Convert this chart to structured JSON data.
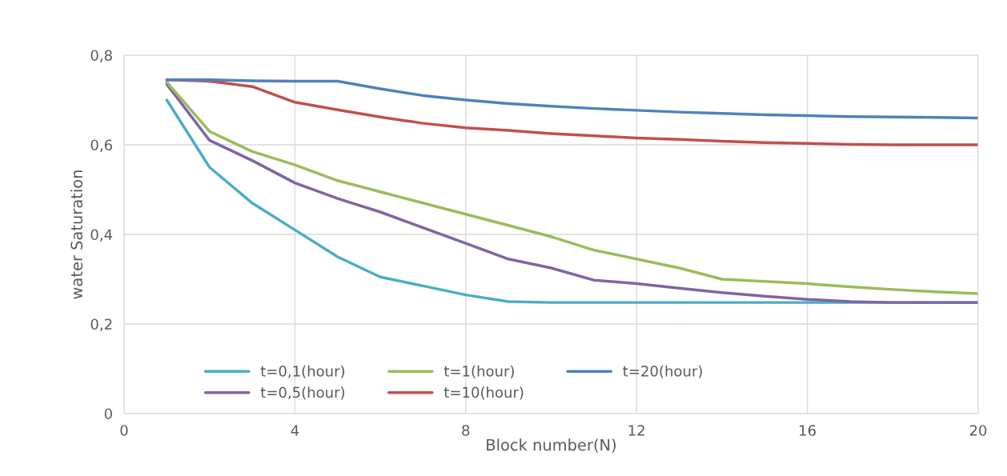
{
  "chart_data": {
    "type": "line",
    "xlabel": "Block number(N)",
    "ylabel": "water Saturation",
    "x": [
      1,
      2,
      3,
      4,
      5,
      6,
      7,
      8,
      9,
      10,
      11,
      12,
      13,
      14,
      15,
      16,
      17,
      18,
      19,
      20
    ],
    "series": [
      {
        "name": "t=0,1(hour)",
        "color": "#4bacc6",
        "values": [
          0.7,
          0.55,
          0.47,
          0.41,
          0.35,
          0.305,
          0.285,
          0.265,
          0.25,
          0.248,
          0.248,
          0.248,
          0.248,
          0.248,
          0.248,
          0.248,
          0.248,
          0.248,
          0.248,
          0.248
        ]
      },
      {
        "name": "t=0,5(hour)",
        "color": "#8064a2",
        "values": [
          0.735,
          0.61,
          0.565,
          0.515,
          0.48,
          0.45,
          0.415,
          0.38,
          0.345,
          0.325,
          0.298,
          0.29,
          0.28,
          0.27,
          0.262,
          0.255,
          0.25,
          0.248,
          0.248,
          0.248
        ]
      },
      {
        "name": "t=1(hour)",
        "color": "#9bbb59",
        "values": [
          0.74,
          0.63,
          0.585,
          0.555,
          0.52,
          0.495,
          0.47,
          0.445,
          0.42,
          0.395,
          0.365,
          0.345,
          0.325,
          0.3,
          0.295,
          0.29,
          0.283,
          0.277,
          0.272,
          0.268
        ]
      },
      {
        "name": "t=10(hour)",
        "color": "#c0504d",
        "values": [
          0.745,
          0.742,
          0.73,
          0.695,
          0.678,
          0.662,
          0.648,
          0.638,
          0.632,
          0.625,
          0.62,
          0.615,
          0.612,
          0.608,
          0.605,
          0.603,
          0.601,
          0.6,
          0.6,
          0.6
        ]
      },
      {
        "name": "t=20(hour)",
        "color": "#4f81bd",
        "values": [
          0.745,
          0.745,
          0.743,
          0.742,
          0.742,
          0.725,
          0.71,
          0.7,
          0.692,
          0.686,
          0.681,
          0.677,
          0.673,
          0.67,
          0.667,
          0.665,
          0.663,
          0.662,
          0.661,
          0.66
        ]
      }
    ],
    "xlim": [
      0,
      20
    ],
    "xticks": [
      0,
      4,
      8,
      12,
      16,
      20
    ],
    "ylim": [
      0,
      0.8
    ],
    "yticks": [
      0,
      {
        "value": 0.2,
        "label": "0,2"
      },
      {
        "value": 0.4,
        "label": "0,4"
      },
      {
        "value": 0.6,
        "label": "0,6"
      },
      {
        "value": 0.8,
        "label": "0,8"
      }
    ],
    "grid": true,
    "legend": "bottom left",
    "marker": "none",
    "line_style": "solid"
  }
}
